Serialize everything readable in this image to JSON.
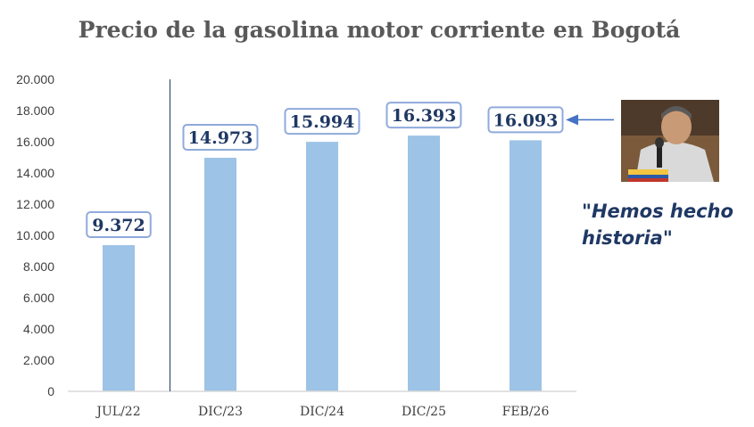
{
  "chart_data": {
    "type": "bar",
    "title": "Precio de la gasolina motor corriente en Bogotá",
    "categories": [
      "JUL/22",
      "DIC/23",
      "DIC/24",
      "DIC/25",
      "FEB/26"
    ],
    "values": [
      9372,
      14973,
      15994,
      16393,
      16093
    ],
    "data_labels": [
      "9.372",
      "14.973",
      "15.994",
      "16.393",
      "16.093"
    ],
    "ylim": [
      0,
      20000
    ],
    "yticks": [
      0,
      2000,
      4000,
      6000,
      8000,
      10000,
      12000,
      14000,
      16000,
      18000,
      20000
    ],
    "ytick_labels": [
      "0",
      "2.000",
      "4.000",
      "6.000",
      "8.000",
      "10.000",
      "12.000",
      "14.000",
      "16.000",
      "18.000",
      "20.000"
    ],
    "grid": false,
    "legend": "none",
    "divider_after_category": "JUL/22"
  },
  "annotation": {
    "quote_lines": [
      "\"Hemos hecho",
      "historia\""
    ],
    "points_to": "FEB/26",
    "photo": "speaker-photo"
  },
  "colors": {
    "bar": "#9dc3e6",
    "label_border": "#8faadc",
    "label_text": "#1f3864",
    "arrow": "#4472c4",
    "axis": "#d9d9d9",
    "divider": "#1f3864"
  }
}
